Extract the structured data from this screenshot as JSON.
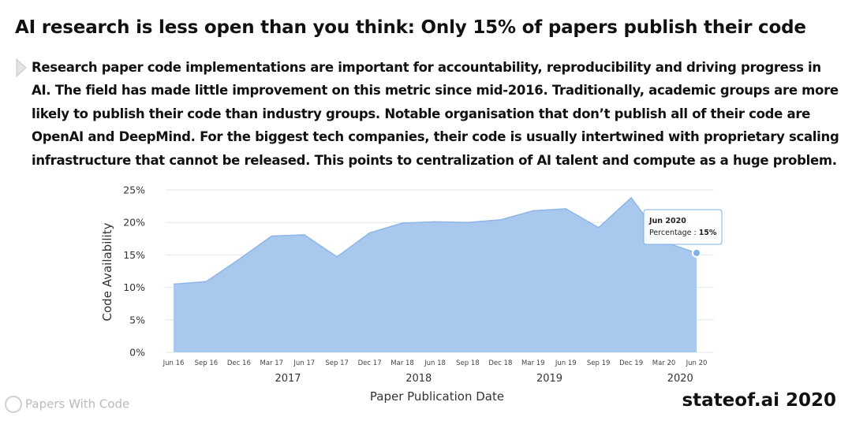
{
  "header": {
    "title": "AI research is less open than you think: Only 15% of papers publish their code"
  },
  "body": {
    "paragraph": "Research paper code implementations are important for accountability, reproducibility and driving progress in AI. The field has made little improvement on this metric since mid-2016. Traditionally, academic groups are more likely to publish their code than industry groups. Notable organisation that don’t publish all of their code are OpenAI and DeepMind. For the biggest tech companies, their code is usually intertwined with proprietary scaling infrastructure that cannot be released. This points to centralization of AI talent and compute as a huge problem."
  },
  "chart_data": {
    "type": "area",
    "x": [
      "Jun 16",
      "Sep 16",
      "Dec 16",
      "Mar 17",
      "Jun 17",
      "Sep 17",
      "Dec 17",
      "Mar 18",
      "Jun 18",
      "Sep 18",
      "Dec 18",
      "Mar 19",
      "Jun 19",
      "Sep 19",
      "Dec 19",
      "Mar 20",
      "Jun 20"
    ],
    "year_labels": [
      "2017",
      "2018",
      "2019",
      "2020"
    ],
    "series": [
      {
        "values": [
          10.5,
          10.9,
          14.3,
          17.9,
          18.1,
          14.7,
          18.4,
          19.9,
          20.1,
          20.0,
          20.4,
          21.8,
          22.1,
          19.2,
          23.8,
          17.0,
          15.3
        ]
      }
    ],
    "yticks": [
      "0%",
      "5%",
      "10%",
      "15%",
      "20%",
      "25%"
    ],
    "ylim": [
      0,
      25
    ],
    "xlabel": "Paper Publication Date",
    "ylabel": "Code Availability",
    "grid": true,
    "fill_color": "#a8c8ee",
    "line_color": "#8fb6e6",
    "marker_color": "#7fb0e8",
    "tooltip": {
      "title": "Jun 2020",
      "label": "Percentage : ",
      "value": "15%"
    }
  },
  "footer": {
    "watermark": "Papers With Code",
    "brand": "stateof.ai 2020"
  }
}
